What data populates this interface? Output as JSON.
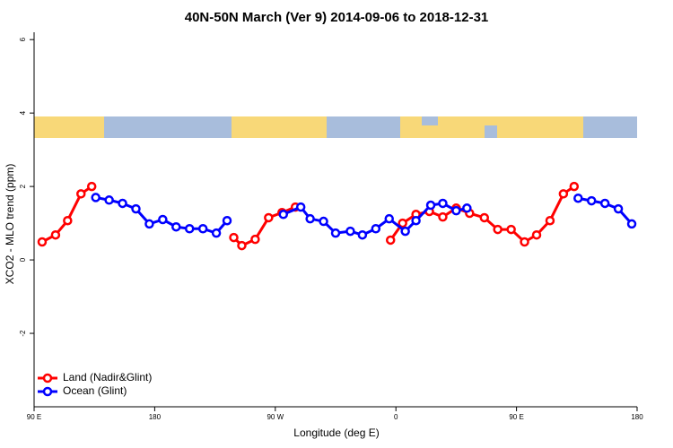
{
  "chart_data": {
    "type": "line",
    "title": "40N-50N March (Ver 9)   2014-09-06 to 2018-12-31",
    "xlabel": "Longitude (deg E)",
    "ylabel": "XCO2 - MLO trend (ppm)",
    "xlim": [
      90,
      540
    ],
    "xticks": [
      {
        "value": 90,
        "label": "90 E"
      },
      {
        "value": 180,
        "label": "180"
      },
      {
        "value": 270,
        "label": "90 W"
      },
      {
        "value": 360,
        "label": "0"
      },
      {
        "value": 450,
        "label": "90 E"
      },
      {
        "value": 540,
        "label": "180"
      }
    ],
    "ylim": [
      -4,
      6.2
    ],
    "yticks": [
      -2,
      0,
      2,
      4,
      6
    ],
    "legend": "bottom-left",
    "series": [
      {
        "name": "Land (Nadir&Glint)",
        "color": "#ff0000",
        "x": [
          96,
          106,
          115,
          125,
          133,
          null,
          239,
          245,
          255,
          265,
          275,
          285,
          null,
          356,
          365,
          375,
          385,
          395,
          405,
          415,
          426,
          436,
          446,
          456,
          465,
          475,
          485,
          493
        ],
        "values": [
          0.49,
          0.68,
          1.07,
          1.8,
          2.0,
          null,
          0.61,
          0.39,
          0.56,
          1.15,
          1.29,
          1.44,
          null,
          0.54,
          1.0,
          1.24,
          1.32,
          1.17,
          1.41,
          1.27,
          1.15,
          0.83,
          0.83,
          0.49,
          0.68,
          1.07,
          1.8,
          2.0
        ]
      },
      {
        "name": "Ocean (Glint)",
        "color": "#0000ff",
        "x": [
          136,
          146,
          156,
          166,
          176,
          186,
          196,
          206,
          216,
          226,
          234,
          null,
          276,
          289,
          296,
          306,
          315,
          326,
          335,
          345,
          355,
          367,
          375,
          386,
          395,
          405,
          413,
          null,
          496,
          506,
          516,
          526,
          536
        ],
        "values": [
          1.7,
          1.63,
          1.54,
          1.39,
          0.98,
          1.1,
          0.9,
          0.85,
          0.85,
          0.73,
          1.07,
          null,
          1.24,
          1.44,
          1.12,
          1.05,
          0.73,
          0.78,
          0.68,
          0.85,
          1.12,
          0.78,
          1.07,
          1.49,
          1.54,
          1.34,
          1.41,
          null,
          1.68,
          1.61,
          1.54,
          1.39,
          0.98
        ]
      }
    ]
  }
}
